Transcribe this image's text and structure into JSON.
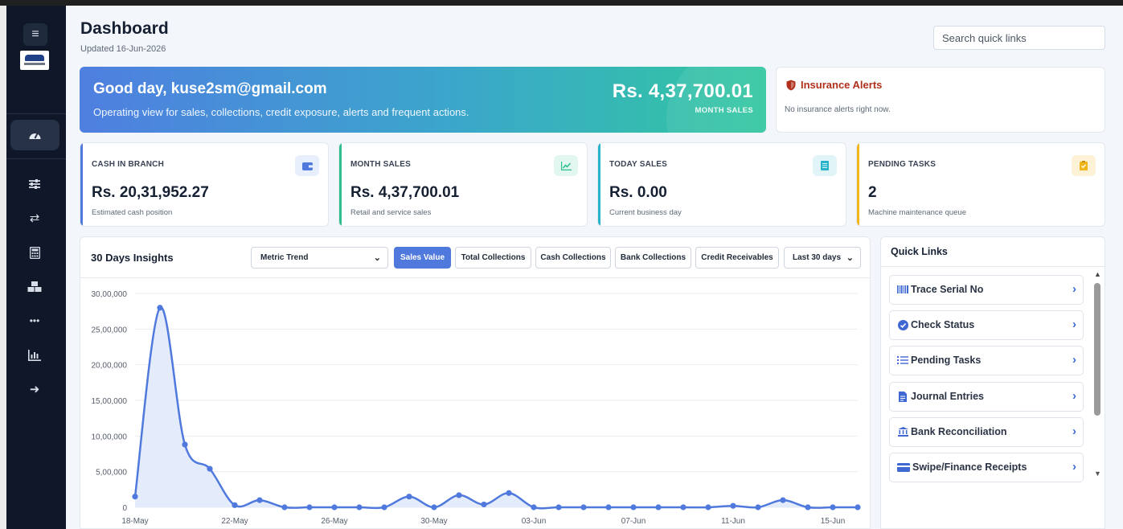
{
  "sidebar": {
    "menu_icon": "hamburger-icon",
    "logo": "car-logo",
    "active_icon": "speedometer-icon",
    "icons": [
      "sliders-icon",
      "transfer-icon",
      "calculator-icon",
      "boxes-icon",
      "more-icon",
      "bar-chart-icon",
      "logout-icon"
    ]
  },
  "header": {
    "title": "Dashboard",
    "updated": "Updated 16-Jun-2026",
    "search_placeholder": "Search quick links"
  },
  "hero": {
    "greeting": "Good day, kuse2sm@gmail.com",
    "subtitle": "Operating view for sales, collections, credit exposure, alerts and frequent actions.",
    "amount": "Rs. 4,37,700.01",
    "amount_label": "MONTH SALES"
  },
  "alerts": {
    "title": "Insurance Alerts",
    "message": "No insurance alerts right now.",
    "color": "#b0301b"
  },
  "stats": [
    {
      "label": "CASH IN BRANCH",
      "value": "Rs. 20,31,952.27",
      "sub": "Estimated cash position",
      "icon": "wallet-icon",
      "color": "#4f79dc"
    },
    {
      "label": "MONTH SALES",
      "value": "Rs. 4,37,700.01",
      "sub": "Retail and service sales",
      "icon": "trend-up-icon",
      "color": "#2fbf8f"
    },
    {
      "label": "TODAY SALES",
      "value": "Rs. 0.00",
      "sub": "Current business day",
      "icon": "receipt-icon",
      "color": "#27b3c9"
    },
    {
      "label": "PENDING TASKS",
      "value": "2",
      "sub": "Machine maintenance queue",
      "icon": "clipboard-check-icon",
      "color": "#f2b61d"
    }
  ],
  "insights": {
    "title": "30 Days Insights",
    "metric_select": "Metric Trend",
    "tabs": [
      "Sales Value",
      "Total Collections",
      "Cash Collections",
      "Bank Collections",
      "Credit Receivables"
    ],
    "active_tab": "Sales Value",
    "range_select": "Last 30 days"
  },
  "chart_data": {
    "type": "area",
    "x": [
      "18-May",
      "19-May",
      "20-May",
      "21-May",
      "22-May",
      "23-May",
      "24-May",
      "25-May",
      "26-May",
      "27-May",
      "28-May",
      "29-May",
      "30-May",
      "31-May",
      "01-Jun",
      "02-Jun",
      "03-Jun",
      "04-Jun",
      "05-Jun",
      "06-Jun",
      "07-Jun",
      "08-Jun",
      "09-Jun",
      "10-Jun",
      "11-Jun",
      "12-Jun",
      "13-Jun",
      "14-Jun",
      "15-Jun",
      "16-Jun"
    ],
    "x_tick_labels": [
      "18-May",
      "22-May",
      "26-May",
      "30-May",
      "03-Jun",
      "07-Jun",
      "11-Jun",
      "15-Jun"
    ],
    "series": [
      {
        "values": [
          150000,
          2800000,
          880000,
          540000,
          30000,
          100000,
          0,
          0,
          0,
          0,
          0,
          150000,
          0,
          170000,
          40000,
          200000,
          0,
          0,
          0,
          0,
          0,
          0,
          0,
          0,
          20000,
          0,
          100000,
          0,
          0,
          0
        ]
      }
    ],
    "y_ticks": [
      0,
      500000,
      1000000,
      1500000,
      2000000,
      2500000,
      3000000
    ],
    "y_tick_labels": [
      "0",
      "5,00,000",
      "10,00,000",
      "15,00,000",
      "20,00,000",
      "25,00,000",
      "30,00,000"
    ],
    "ylim": [
      0,
      3000000
    ],
    "grid": true,
    "line_color": "#4f79dc",
    "fill_color": "#e4ebfa"
  },
  "quick_links": {
    "title": "Quick Links",
    "items": [
      {
        "label": "Trace Serial No",
        "icon": "barcode-icon"
      },
      {
        "label": "Check Status",
        "icon": "check-circle-icon"
      },
      {
        "label": "Pending Tasks",
        "icon": "task-list-icon"
      },
      {
        "label": "Journal Entries",
        "icon": "document-icon"
      },
      {
        "label": "Bank Reconciliation",
        "icon": "bank-icon"
      },
      {
        "label": "Swipe/Finance Receipts",
        "icon": "card-icon"
      }
    ]
  }
}
